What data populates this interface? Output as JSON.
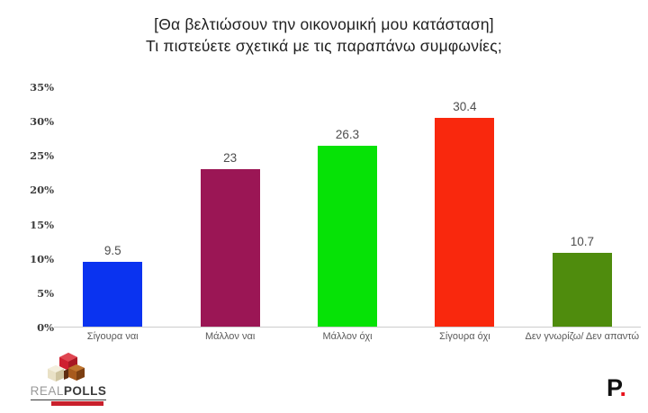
{
  "title": {
    "line1": "[Θα βελτιώσουν την οικονομική μου κατάσταση]",
    "line2": "Τι πιστεύετε σχετικά με τις παραπάνω συμφωνίες;"
  },
  "chart_data": {
    "type": "bar",
    "title": "[Θα βελτιώσουν την οικονομική μου κατάσταση] Τι πιστεύετε σχετικά με τις παραπάνω συμφωνίες;",
    "categories": [
      "Σίγουρα ναι",
      "Μάλλον ναι",
      "Μάλλον όχι",
      "Σίγουρα όχι",
      "Δεν γνωρίζω/ Δεν απαντώ"
    ],
    "values": [
      9.5,
      23,
      26.3,
      30.4,
      10.7
    ],
    "value_labels": [
      "9.5",
      "23",
      "26.3",
      "30.4",
      "10.7"
    ],
    "bar_colors": [
      "#0a33f0",
      "#9b1655",
      "#06e206",
      "#f9280d",
      "#4f8c0d"
    ],
    "xlabel": "",
    "ylabel": "",
    "ylim": [
      0,
      35
    ],
    "yticks": [
      "0%",
      "5%",
      "10%",
      "15%",
      "20%",
      "25%",
      "30%",
      "35%"
    ],
    "grid": false,
    "legend": false,
    "baseline_color": "#cccccc"
  },
  "footer": {
    "realpolls": {
      "real": "REAL",
      "polls": "POLLS"
    },
    "brand_p": {
      "letter": "P",
      "dot": "."
    }
  }
}
